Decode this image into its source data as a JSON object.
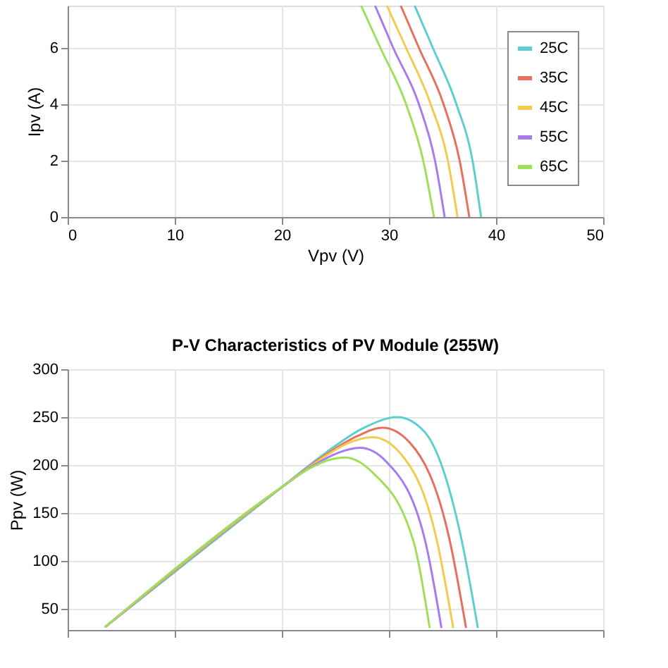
{
  "chart_data": [
    {
      "type": "line",
      "xlabel": "Vpv (V)",
      "ylabel": "Ipv (A)",
      "xlim": [
        0,
        50
      ],
      "xticks": [
        0,
        10,
        20,
        30,
        40,
        50
      ],
      "ylim": [
        0,
        7.5
      ],
      "yticks": [
        0,
        2,
        4,
        6
      ],
      "grid": true,
      "legend": "top right",
      "marker": "none",
      "line_style": "solid",
      "series": [
        {
          "name": "25C",
          "color": "#5ccfd0",
          "x": [
            32.4,
            34.1,
            36.3,
            37.8,
            38.6
          ],
          "values": [
            7.5,
            6,
            4,
            2,
            0
          ]
        },
        {
          "name": "35C",
          "color": "#e8705e",
          "x": [
            31.1,
            32.8,
            35.1,
            36.6,
            37.5
          ],
          "values": [
            7.5,
            6,
            4,
            2,
            0
          ]
        },
        {
          "name": "45C",
          "color": "#f2cc4e",
          "x": [
            29.8,
            31.6,
            33.9,
            35.5,
            36.4
          ],
          "values": [
            7.5,
            6,
            4,
            2,
            0
          ]
        },
        {
          "name": "55C",
          "color": "#a77cf0",
          "x": [
            28.7,
            30.4,
            32.8,
            34.3,
            35.2
          ],
          "values": [
            7.5,
            6,
            4,
            2,
            0
          ]
        },
        {
          "name": "65C",
          "color": "#9fe05a",
          "x": [
            27.4,
            29.2,
            31.6,
            33.2,
            34.2
          ],
          "values": [
            7.5,
            6,
            4,
            2,
            0
          ]
        }
      ]
    },
    {
      "type": "line",
      "title": "P-V Characteristics of PV Module (255W)",
      "ylabel": "Ppv (W)",
      "xlim": [
        0,
        50
      ],
      "xticks": [
        0,
        10,
        20,
        30,
        40,
        50
      ],
      "ylim": [
        28,
        300
      ],
      "yticks": [
        50,
        100,
        150,
        200,
        250,
        300
      ],
      "tick_labels": "y",
      "grid": true,
      "legend": "top right",
      "marker": "none",
      "line_style": "solid",
      "series": [
        {
          "name": "25C",
          "color": "#5ccfd0",
          "x": [
            3.5,
            20,
            24,
            27.5,
            30.8,
            33.3,
            36.8,
            38.3
          ],
          "values": [
            31,
            177,
            212,
            238,
            250,
            235,
            121,
            30
          ]
        },
        {
          "name": "35C",
          "color": "#e8705e",
          "x": [
            3.5,
            20,
            24,
            27,
            29.4,
            31.9,
            35.7,
            37.2
          ],
          "values": [
            31,
            177,
            210,
            230,
            239,
            224,
            120,
            30
          ]
        },
        {
          "name": "45C",
          "color": "#f2cc4e",
          "x": [
            3.5,
            20,
            23.5,
            26,
            28.5,
            31,
            34.5,
            36
          ],
          "values": [
            31,
            177,
            205,
            222,
            229,
            213,
            120,
            30
          ]
        },
        {
          "name": "55C",
          "color": "#a77cf0",
          "x": [
            3.5,
            20,
            23,
            25.3,
            27.3,
            29.8,
            33.4,
            34.9
          ],
          "values": [
            31,
            177,
            200,
            213,
            218,
            203,
            120,
            30
          ]
        },
        {
          "name": "65C",
          "color": "#9fe05a",
          "x": [
            3.5,
            20,
            22.5,
            24.3,
            25.9,
            28.4,
            32.3,
            33.8
          ],
          "values": [
            31,
            177,
            196,
            205,
            208,
            193,
            120,
            30
          ]
        }
      ]
    }
  ]
}
